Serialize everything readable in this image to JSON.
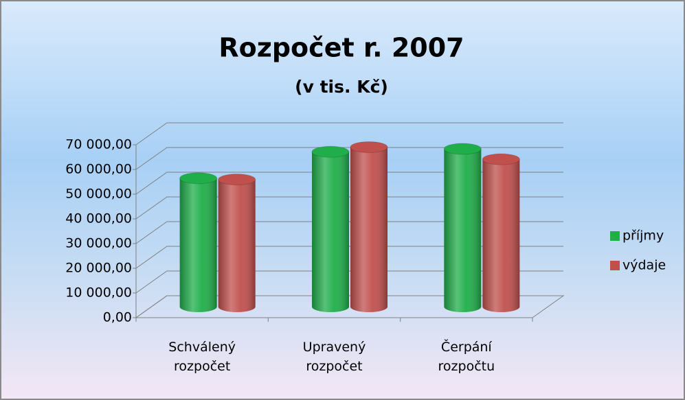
{
  "chart_data": {
    "type": "bar3d",
    "title": "Rozpočet r. 2007",
    "subtitle": "(v tis. Kč)",
    "categories": [
      "Schválený rozpočet",
      "Upravený rozpočet",
      "Čerpání rozpočtu"
    ],
    "series": [
      {
        "name": "příjmy",
        "color": "#1fae4a",
        "values": [
          52000,
          62700,
          63900
        ]
      },
      {
        "name": "výdaje",
        "color": "#c0504d",
        "values": [
          51500,
          64600,
          59700
        ]
      }
    ],
    "ylim": [
      0,
      70000
    ],
    "yticks": [
      {
        "value": 0,
        "label": "0,00"
      },
      {
        "value": 10000,
        "label": "10 000,00"
      },
      {
        "value": 20000,
        "label": "20 000,00"
      },
      {
        "value": 30000,
        "label": "30 000,00"
      },
      {
        "value": 40000,
        "label": "40 000,00"
      },
      {
        "value": 50000,
        "label": "50 000,00"
      },
      {
        "value": 60000,
        "label": "60 000,00"
      },
      {
        "value": 70000,
        "label": "70 000,00"
      }
    ],
    "grid": true,
    "legend": "right"
  }
}
